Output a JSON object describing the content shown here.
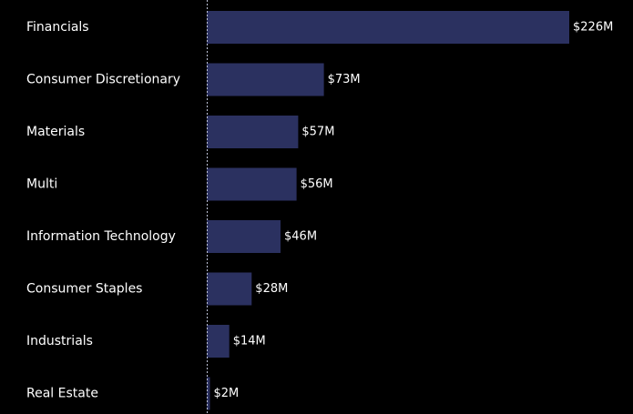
{
  "chart_data": {
    "type": "bar",
    "orientation": "horizontal",
    "categories": [
      "Financials",
      "Consumer Discretionary",
      "Materials",
      "Multi",
      "Information Technology",
      "Consumer Staples",
      "Industrials",
      "Real Estate"
    ],
    "values": [
      226,
      73,
      57,
      56,
      46,
      28,
      14,
      2
    ],
    "value_labels": [
      "$226M",
      "$73M",
      "$57M",
      "$56M",
      "$46M",
      "$28M",
      "$14M",
      "$2M"
    ],
    "unit": "$M",
    "title": "",
    "xlabel": "",
    "ylabel": "",
    "grid": false,
    "legend": "none",
    "colors": {
      "background": "#000000",
      "bar": "#2b3160",
      "text": "#ffffff",
      "baseline": "#bfc3d8"
    }
  }
}
